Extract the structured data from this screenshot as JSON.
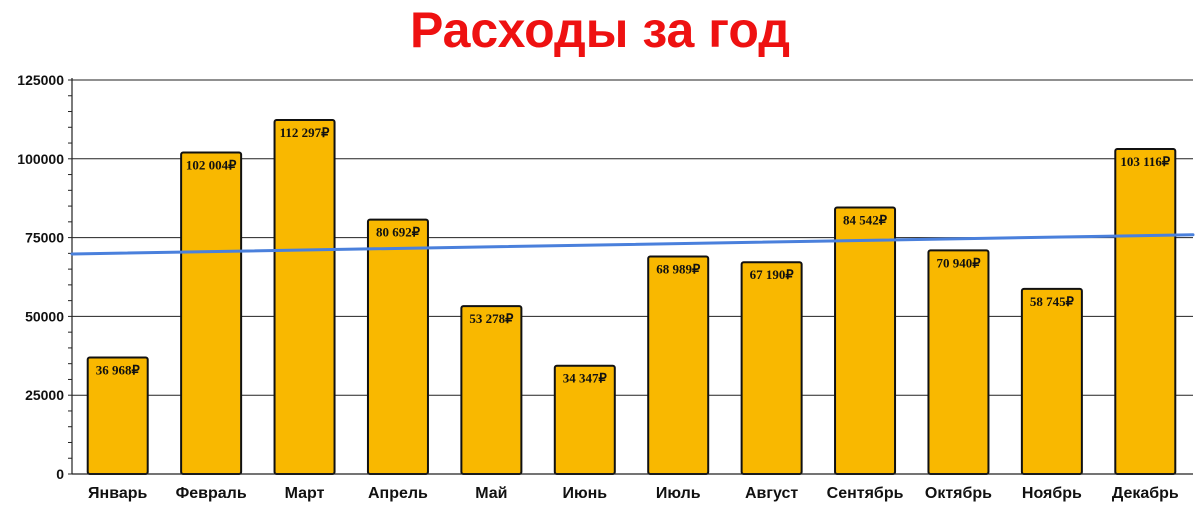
{
  "chart_data": {
    "type": "bar",
    "title": "Расходы за год",
    "colors": {
      "title": "#ee1111",
      "bar_fill": "#f9b800",
      "bar_stroke": "#111111",
      "trendline": "#4a80dc",
      "grid": "#222222"
    },
    "categories": [
      "Январь",
      "Февраль",
      "Март",
      "Апрель",
      "Май",
      "Июнь",
      "Июль",
      "Август",
      "Сентябрь",
      "Октябрь",
      "Ноябрь",
      "Декабрь"
    ],
    "values": [
      36968,
      102004,
      112297,
      80692,
      53278,
      34347,
      68989,
      67190,
      84542,
      70940,
      58745,
      103116
    ],
    "data_labels": [
      "36 968₽",
      "102 004₽",
      "112 297₽",
      "80 692₽",
      "53 278₽",
      "34 347₽",
      "68 989₽",
      "67 190₽",
      "84 542₽",
      "70 940₽",
      "58 745₽",
      "103 116₽"
    ],
    "yticks": [
      0,
      25000,
      50000,
      75000,
      100000,
      125000
    ],
    "ytick_labels": [
      "0",
      "25000",
      "50000",
      "75000",
      "100000",
      "125000"
    ],
    "ylim": [
      0,
      125000
    ],
    "grid": true,
    "trendline": {
      "type": "linear",
      "start_value": 69800,
      "end_value": 75900
    }
  }
}
